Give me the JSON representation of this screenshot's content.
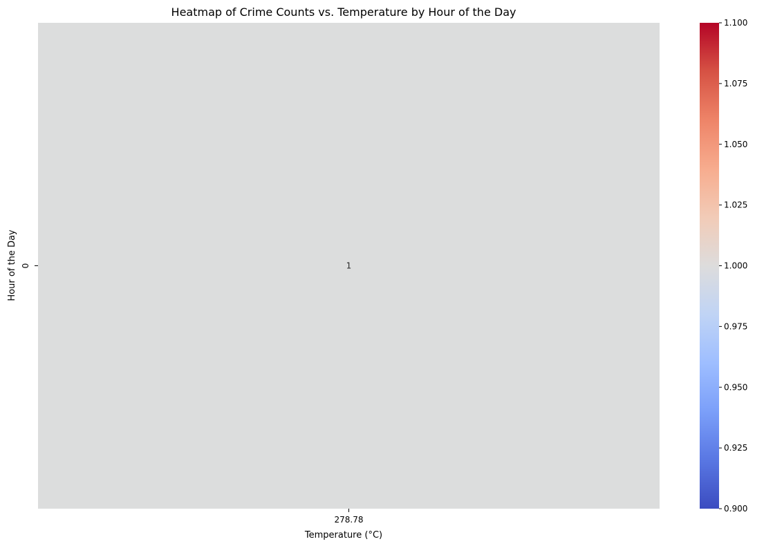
{
  "chart_data": {
    "type": "heatmap",
    "title": "Heatmap of Crime Counts vs. Temperature by Hour of the Day",
    "xlabel": "Temperature (°C)",
    "ylabel": "Hour of the Day",
    "x_categories": [
      "278.78"
    ],
    "y_categories": [
      "0"
    ],
    "values": [
      [
        1
      ]
    ],
    "annotations": [
      [
        "1"
      ]
    ],
    "colormap": "coolwarm",
    "colorbar": {
      "vmin": 0.9,
      "vmax": 1.1,
      "ticks": [
        "0.900",
        "0.925",
        "0.950",
        "0.975",
        "1.000",
        "1.025",
        "1.050",
        "1.075",
        "1.100"
      ],
      "tick_values": [
        0.9,
        0.925,
        0.95,
        0.975,
        1.0,
        1.025,
        1.05,
        1.075,
        1.1
      ],
      "colors": [
        "#3b4cc0",
        "#5977e3",
        "#7b9ff9",
        "#9ebeff",
        "#c0d4f5",
        "#dddcdc",
        "#f2cbb7",
        "#f7ac8e",
        "#ee8468",
        "#d65244",
        "#b40426"
      ]
    },
    "cell_color": "#dcdddd",
    "grid": false,
    "legend": "colorbar-right"
  }
}
